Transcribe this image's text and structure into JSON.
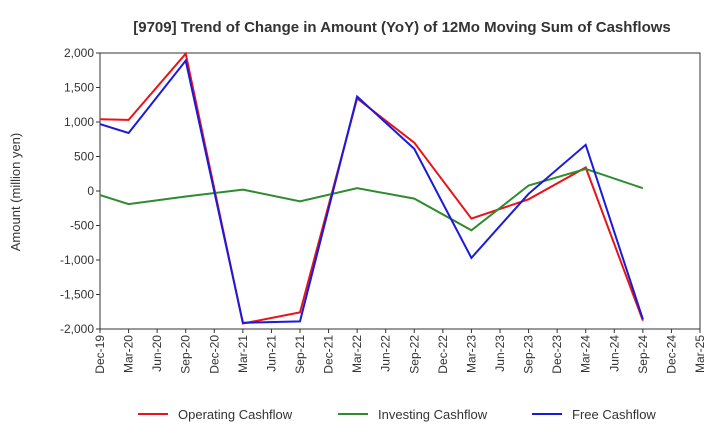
{
  "chart_data": {
    "type": "line",
    "title": "[9709]  Trend of Change in Amount (YoY) of 12Mo Moving Sum of Cashflows",
    "xlabel": "",
    "ylabel": "Amount (million yen)",
    "ylim": [
      -2000,
      2000
    ],
    "yticks": [
      2000,
      1500,
      1000,
      500,
      0,
      -500,
      -1000,
      -1500,
      -2000
    ],
    "ytick_labels": [
      "2,000",
      "1,500",
      "1,000",
      "500",
      "0",
      "-500",
      "-1,000",
      "-1,500",
      "-2,000"
    ],
    "categories": [
      "Dec-19",
      "Mar-20",
      "Jun-20",
      "Sep-20",
      "Dec-20",
      "Mar-21",
      "Jun-21",
      "Sep-21",
      "Dec-21",
      "Mar-22",
      "Jun-22",
      "Sep-22",
      "Dec-22",
      "Mar-23",
      "Jun-23",
      "Sep-23",
      "Dec-23",
      "Mar-24",
      "Jun-24",
      "Sep-24",
      "Dec-24",
      "Mar-25"
    ],
    "grid": true,
    "legend_position": "bottom",
    "series": [
      {
        "name": "Operating Cashflow",
        "color": "#e8141a",
        "values": [
          1040,
          1030,
          null,
          1990,
          null,
          -1920,
          null,
          -1760,
          null,
          1340,
          null,
          700,
          null,
          -400,
          null,
          -120,
          null,
          340,
          null,
          -1880,
          null,
          null
        ]
      },
      {
        "name": "Investing Cashflow",
        "color": "#2e8b2e",
        "values": [
          -60,
          -190,
          null,
          -80,
          null,
          20,
          null,
          -150,
          null,
          40,
          null,
          -110,
          null,
          -570,
          null,
          80,
          null,
          320,
          null,
          40,
          null,
          null
        ]
      },
      {
        "name": "Free Cashflow",
        "color": "#1a1adb",
        "values": [
          970,
          840,
          null,
          1890,
          null,
          -1910,
          null,
          -1890,
          null,
          1370,
          null,
          610,
          null,
          -970,
          null,
          -40,
          null,
          670,
          null,
          -1860,
          null,
          null
        ]
      }
    ]
  }
}
